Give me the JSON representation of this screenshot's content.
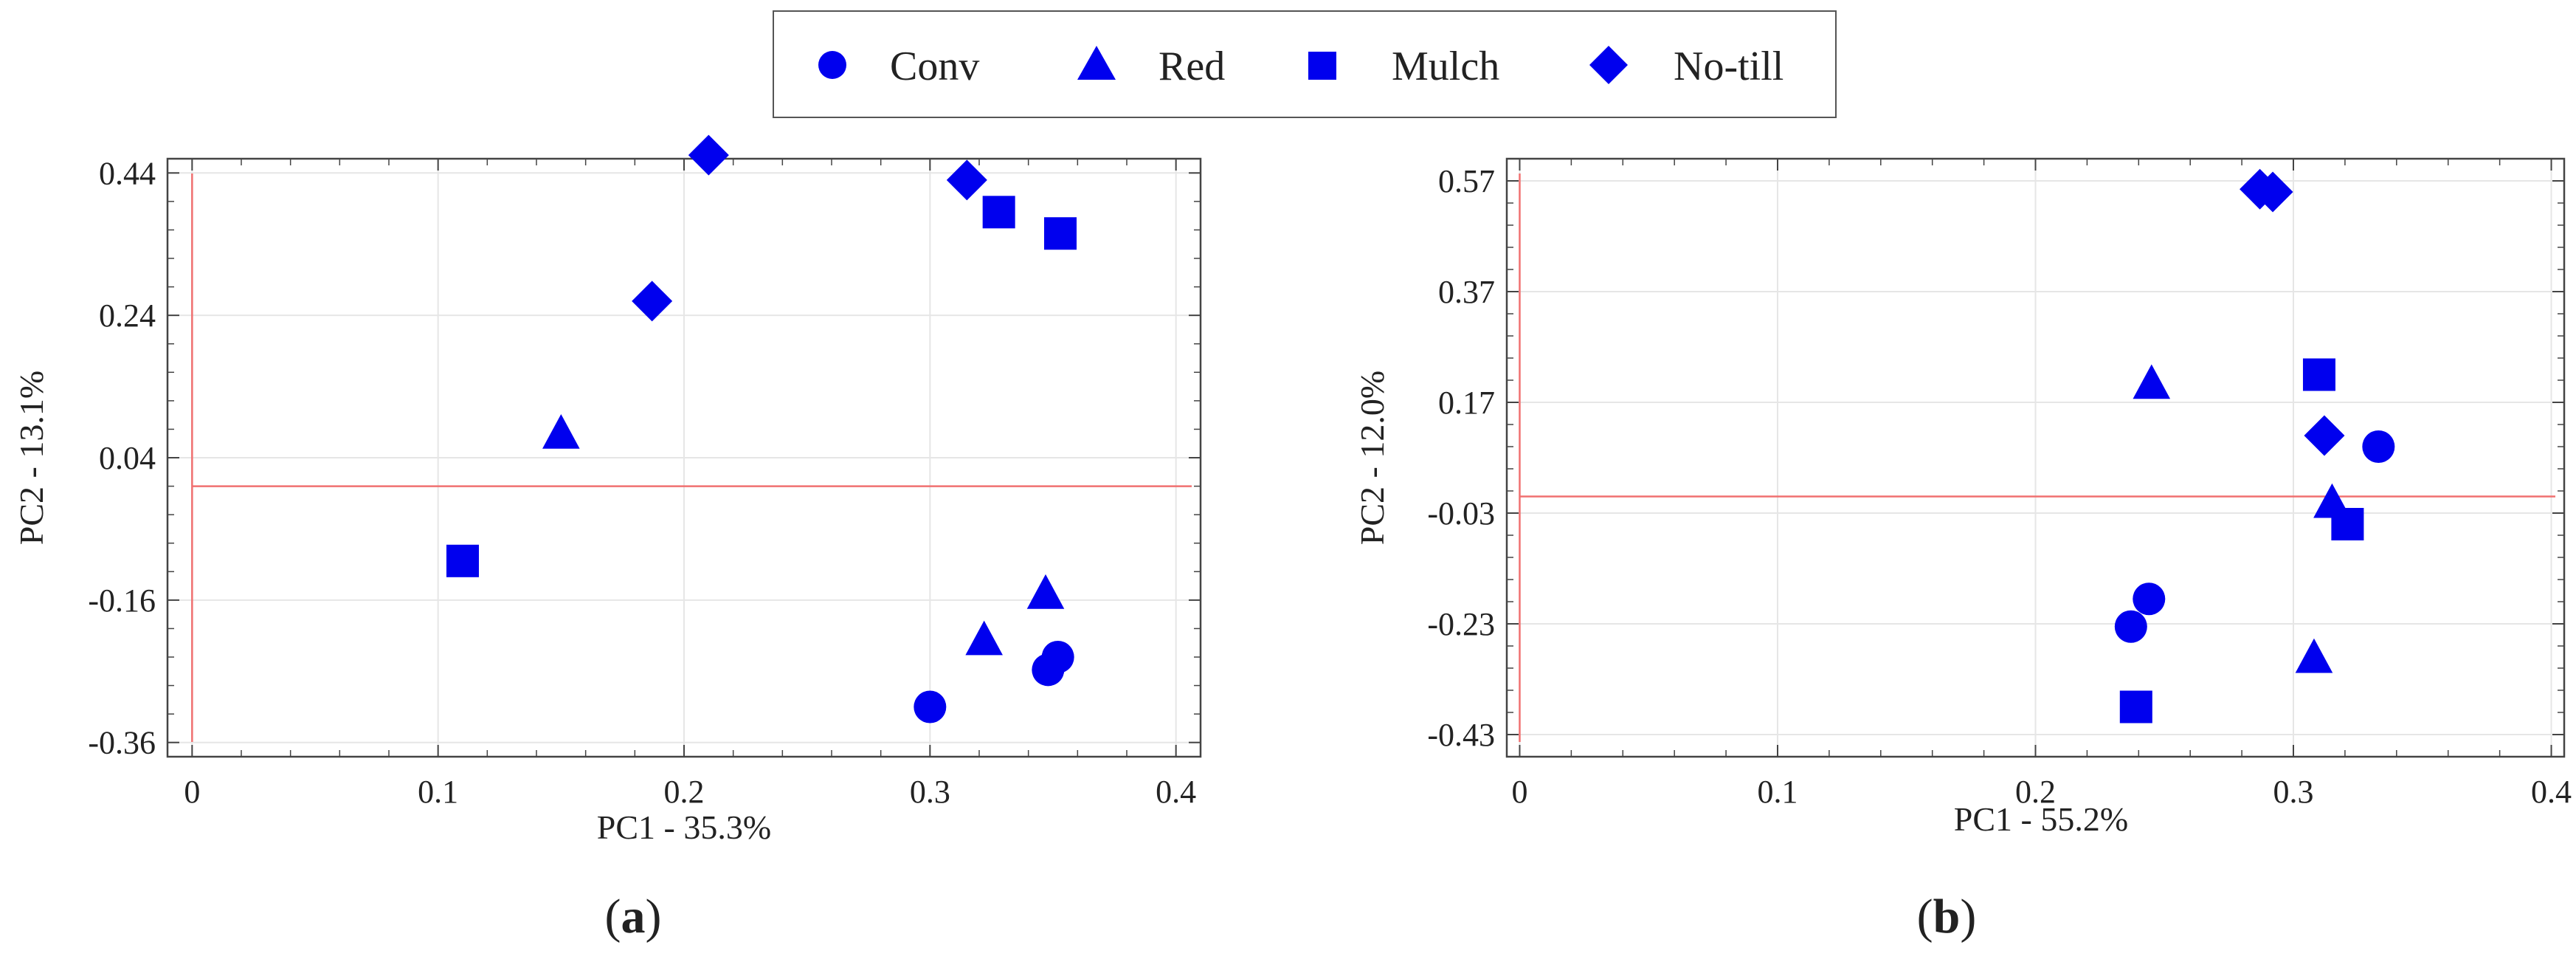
{
  "legend": {
    "entries": [
      {
        "label": "Conv",
        "marker": "circle"
      },
      {
        "label": "Red",
        "marker": "triangle"
      },
      {
        "label": "Mulch",
        "marker": "square"
      },
      {
        "label": "No-till",
        "marker": "diamond"
      }
    ]
  },
  "colors": {
    "marker": "#0000ee",
    "reference_line": "#f07070",
    "grid": "#e6e6e6",
    "frame": "#444444"
  },
  "chart_data": [
    {
      "type": "scatter",
      "panel_label": "(a)",
      "panel_letter": "a",
      "xlabel": "PC1 - 35.3%",
      "ylabel": "PC2 - 13.1%",
      "xlim": [
        -0.01,
        0.41
      ],
      "ylim": [
        -0.38,
        0.46
      ],
      "xticks": [
        0,
        0.1,
        0.2,
        0.3,
        0.4
      ],
      "xtick_labels": [
        "0",
        "0.1",
        "0.2",
        "0.3",
        "0.4"
      ],
      "yticks": [
        -0.36,
        -0.16,
        0.04,
        0.24,
        0.44
      ],
      "ytick_labels": [
        "-0.36",
        "-0.16",
        "0.04",
        "0.24",
        "0.44"
      ],
      "ref_lines": {
        "x": 0,
        "y": 0
      },
      "series": [
        {
          "name": "Conv",
          "marker": "circle",
          "points": [
            [
              0.3,
              -0.31
            ],
            [
              0.348,
              -0.258
            ],
            [
              0.352,
              -0.24
            ]
          ]
        },
        {
          "name": "Red",
          "marker": "triangle",
          "points": [
            [
              0.15,
              0.075
            ],
            [
              0.322,
              -0.215
            ],
            [
              0.347,
              -0.15
            ]
          ]
        },
        {
          "name": "Mulch",
          "marker": "square",
          "points": [
            [
              0.11,
              -0.105
            ],
            [
              0.328,
              0.385
            ],
            [
              0.353,
              0.355
            ]
          ]
        },
        {
          "name": "No-till",
          "marker": "diamond",
          "points": [
            [
              0.21,
              0.465
            ],
            [
              0.315,
              0.43
            ],
            [
              0.187,
              0.26
            ]
          ]
        }
      ]
    },
    {
      "type": "scatter",
      "panel_label": "(b)",
      "panel_letter": "b",
      "xlabel": "PC1 - 55.2%",
      "ylabel": "PC2 - 12.0%",
      "xlim": [
        -0.005,
        0.405
      ],
      "ylim": [
        -0.47,
        0.61
      ],
      "xticks": [
        0,
        0.1,
        0.2,
        0.3,
        0.4
      ],
      "xtick_labels": [
        "0",
        "0.1",
        "0.2",
        "0.3",
        "0.4"
      ],
      "yticks": [
        -0.43,
        -0.23,
        -0.03,
        0.17,
        0.37,
        0.57
      ],
      "ytick_labels": [
        "-0.43",
        "-0.23",
        "-0.03",
        "0.17",
        "0.37",
        "0.57"
      ],
      "ref_lines": {
        "x": 0,
        "y": 0
      },
      "series": [
        {
          "name": "Conv",
          "marker": "circle",
          "points": [
            [
              0.333,
              0.09
            ],
            [
              0.244,
              -0.185
            ],
            [
              0.237,
              -0.235
            ]
          ]
        },
        {
          "name": "Red",
          "marker": "triangle",
          "points": [
            [
              0.245,
              0.205
            ],
            [
              0.315,
              -0.01
            ],
            [
              0.308,
              -0.29
            ]
          ]
        },
        {
          "name": "Mulch",
          "marker": "square",
          "points": [
            [
              0.31,
              0.22
            ],
            [
              0.321,
              -0.05
            ],
            [
              0.239,
              -0.38
            ]
          ]
        },
        {
          "name": "No-till",
          "marker": "diamond",
          "points": [
            [
              0.287,
              0.555
            ],
            [
              0.292,
              0.55
            ],
            [
              0.312,
              0.11
            ]
          ]
        }
      ]
    }
  ]
}
